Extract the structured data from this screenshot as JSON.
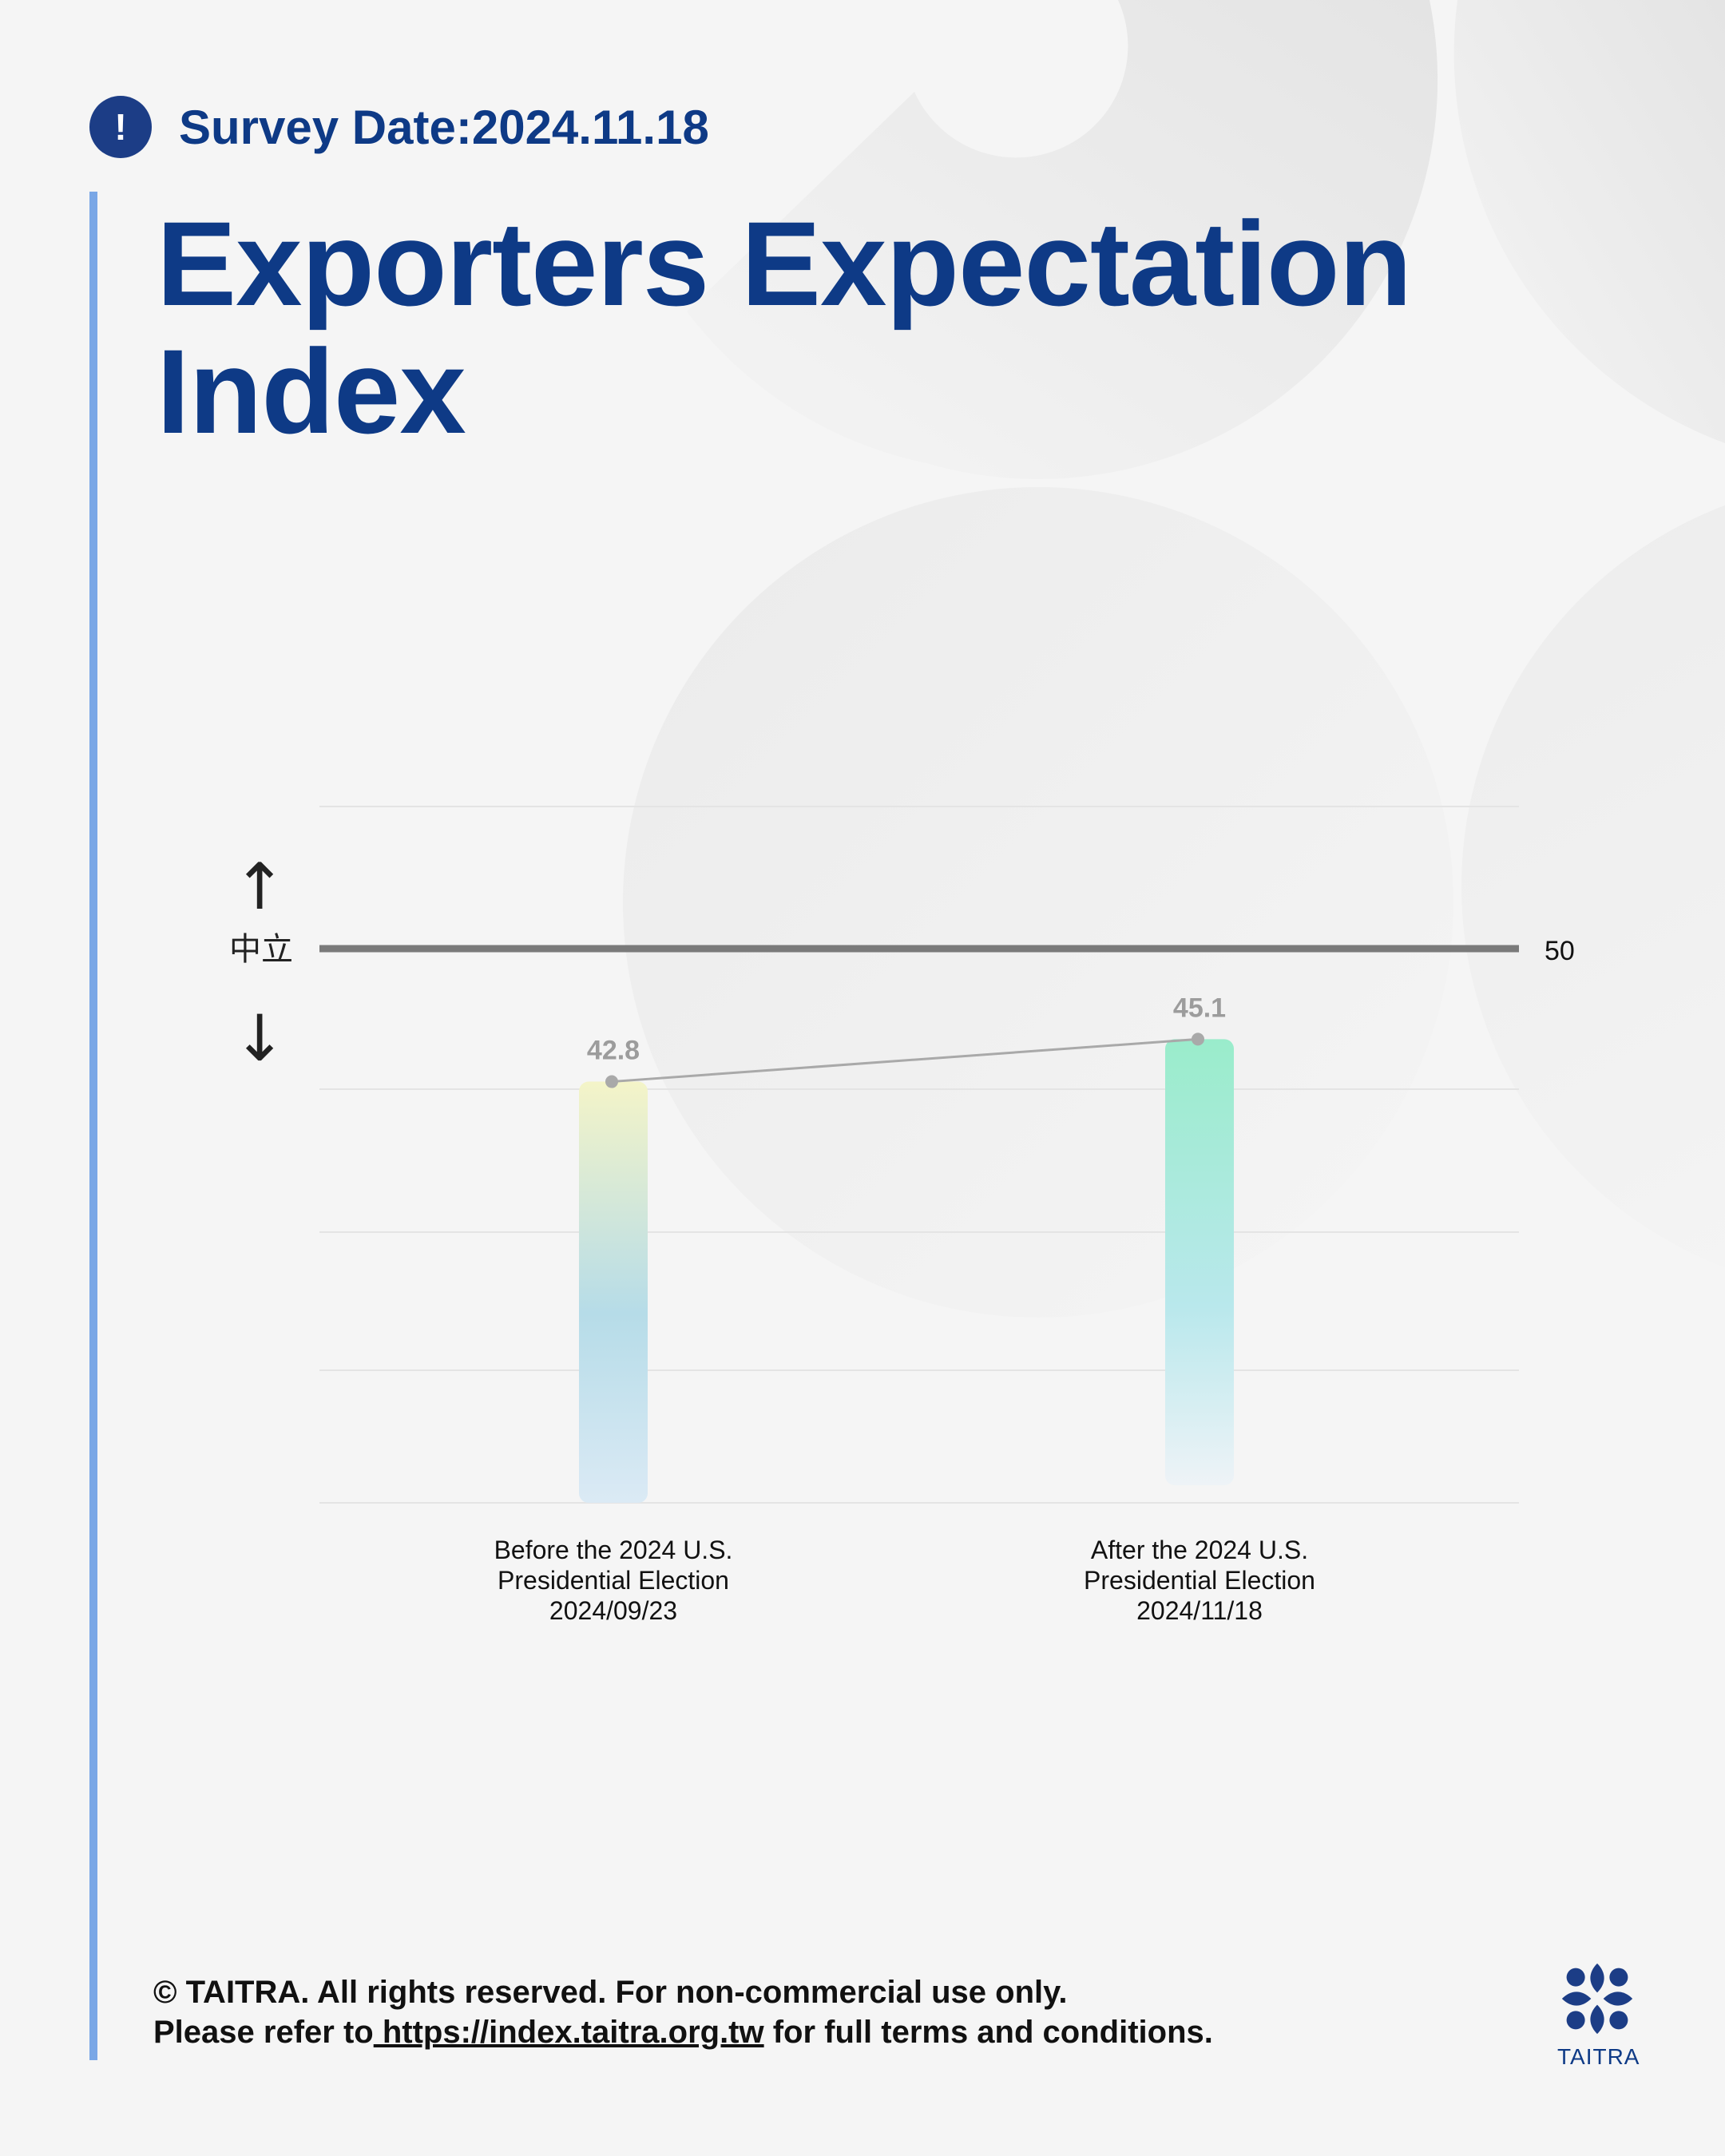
{
  "header": {
    "survey_date_label": "Survey Date:2024.11.18",
    "icon": "exclamation-icon",
    "title": "Exporters Expectation Index"
  },
  "chart_data": {
    "type": "bar",
    "title": "Exporters Expectation Index",
    "categories": [
      "Before the 2024 U.S. Presidential Election 2024/09/23",
      "After the 2024 U.S. Presidential Election 2024/11/18"
    ],
    "category_lines": [
      [
        "Before the 2024 U.S.",
        "Presidential Election",
        "2024/09/23"
      ],
      [
        "After the 2024 U.S.",
        "Presidential Election",
        "2024/11/18"
      ]
    ],
    "series": [
      {
        "values": [
          42.8,
          45.1
        ]
      }
    ],
    "value_labels": [
      "42.8",
      "45.1"
    ],
    "reference_line": {
      "value": 50,
      "label": "50",
      "side_label": "中立"
    },
    "up_arrow": "↑",
    "down_arrow": "↓",
    "ylim": [
      20,
      54
    ],
    "grid": true,
    "colors": {
      "bar1_top": "#f4f4c8",
      "bar1_mid": "#b6dce8",
      "bar1_bottom": "#dbeaf5",
      "bar2_top": "#9aeccb",
      "bar2_mid": "#b9e8ec",
      "bar2_bottom": "#eef3f7",
      "reference_line": "#7a7a7a",
      "connector": "#a9a9a9",
      "value_label": "#9c9c9c"
    }
  },
  "footer": {
    "line1": "© TAITRA. All rights reserved. For non-commercial use only.",
    "line2_prefix": "Please refer to",
    "line2_link": " https://index.taitra.org.tw",
    "line2_suffix": " for full terms and conditions."
  },
  "logo": {
    "text": "TAITRA",
    "icon": "taitra-logo-icon"
  },
  "colors": {
    "brand_navy": "#0e3a86",
    "accent_bar": "#7aa7e6",
    "background": "#f5f5f5"
  }
}
